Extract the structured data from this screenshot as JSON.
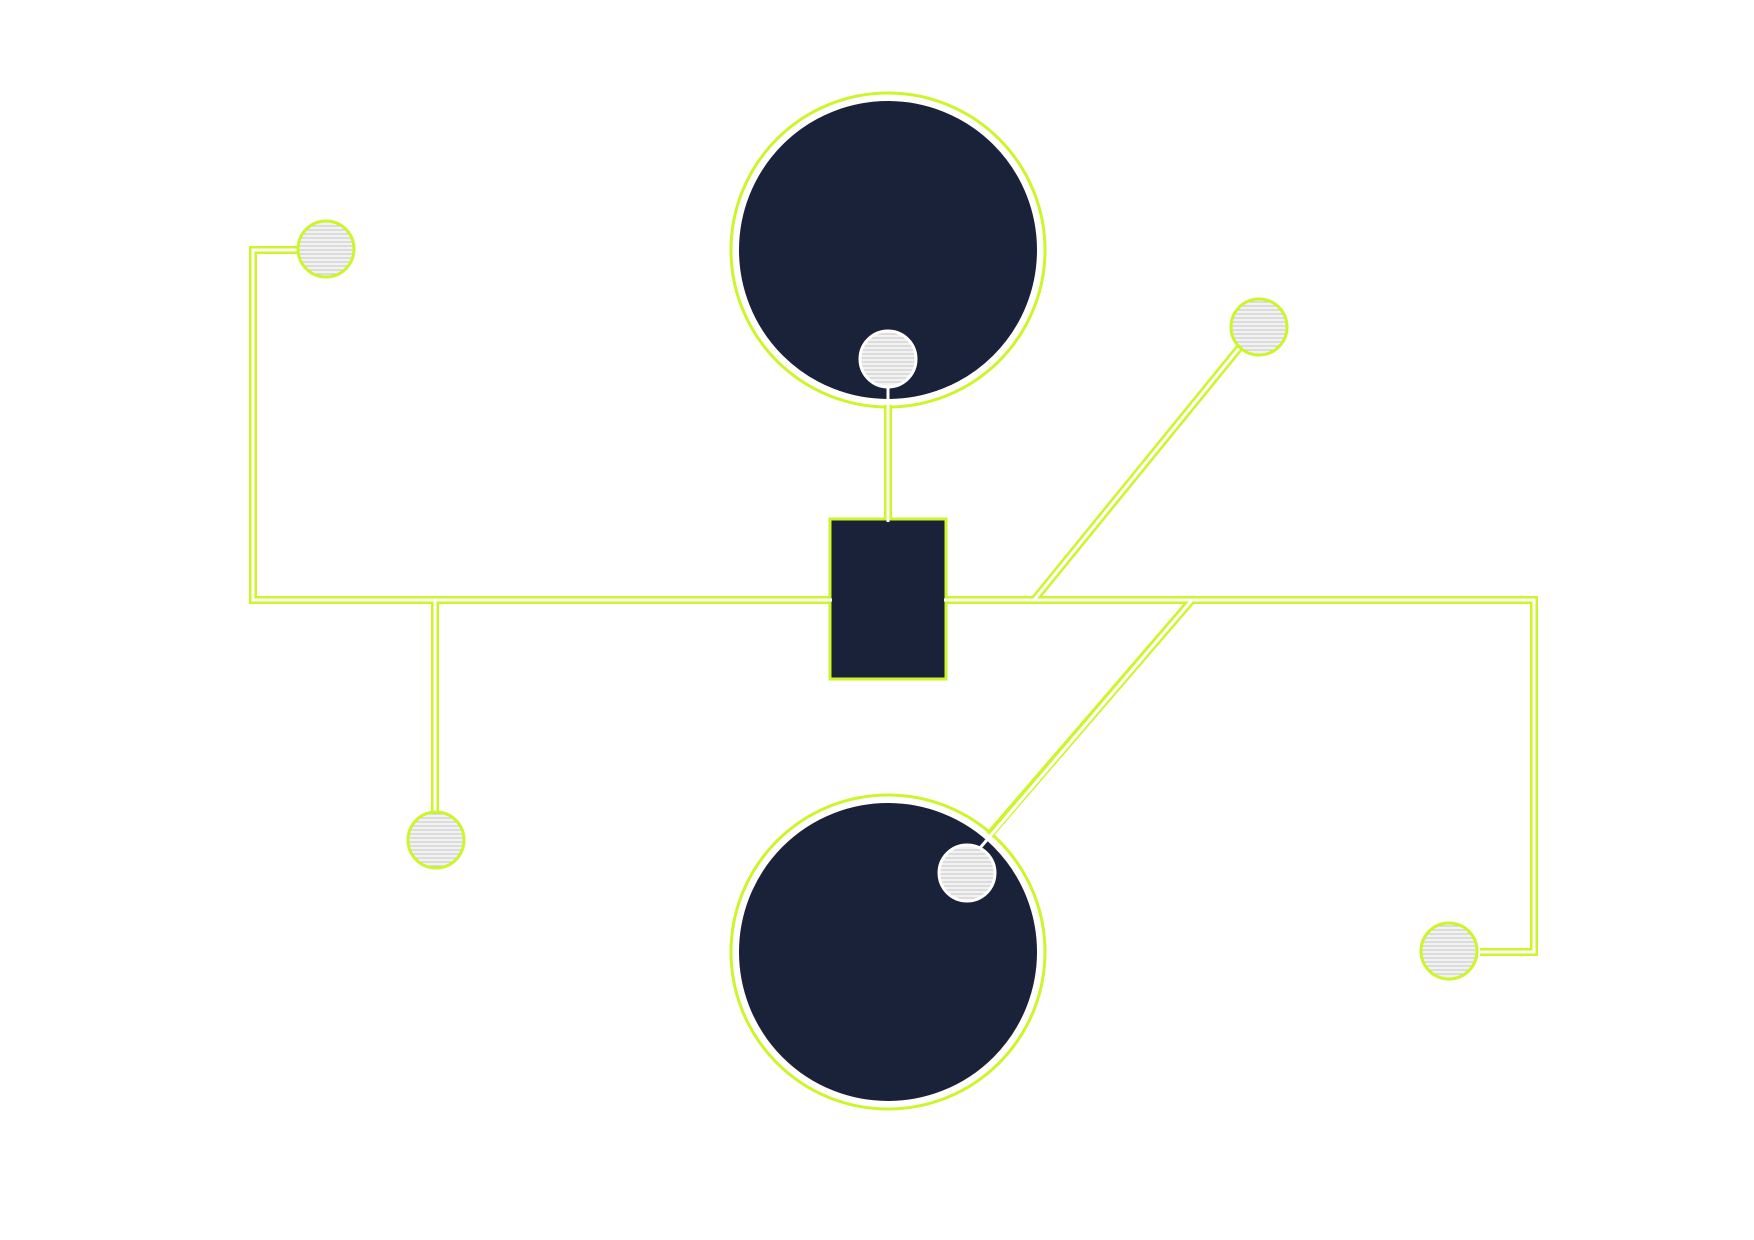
{
  "diagram": {
    "background": "#ffffff",
    "colors": {
      "node_fill": "#1a223a",
      "outline": "#ccf52a",
      "wire": "#ffffff",
      "pad_fill": "#f2f2f2",
      "pad_hatch": "#c8c8c8"
    },
    "nodes": [
      {
        "id": "top-circle",
        "shape": "circle"
      },
      {
        "id": "bottom-circle",
        "shape": "circle"
      },
      {
        "id": "center-rectangle",
        "shape": "rectangle"
      }
    ],
    "terminals": [
      {
        "id": "terminal-top-left",
        "icon": "hatched-circle-icon"
      },
      {
        "id": "terminal-bottom-left",
        "icon": "hatched-circle-icon"
      },
      {
        "id": "terminal-top-right",
        "icon": "hatched-circle-icon"
      },
      {
        "id": "terminal-bottom-right",
        "icon": "hatched-circle-icon"
      },
      {
        "id": "terminal-top-circle-inner",
        "icon": "hatched-circle-icon"
      },
      {
        "id": "terminal-bottom-circle-inner",
        "icon": "hatched-circle-icon"
      }
    ]
  }
}
